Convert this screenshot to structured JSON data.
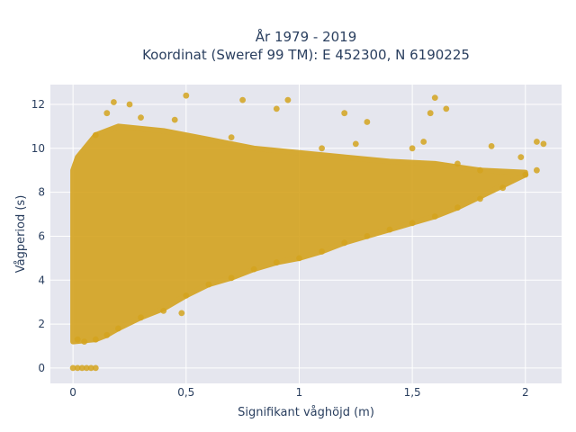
{
  "chart_data": {
    "type": "scatter",
    "title_line1": "År 1979 - 2019",
    "title_line2": "Koordinat (Sweref 99 TM): E 452300, N 6190225",
    "xlabel": "Signifikant våghöjd (m)",
    "ylabel": "Vågperiod (s)",
    "xlim": [
      -0.1,
      2.16
    ],
    "ylim": [
      -0.7,
      12.9
    ],
    "xticks": [
      0,
      0.5,
      1,
      1.5,
      2
    ],
    "xtick_labels": [
      "0",
      "0,5",
      "1",
      "1,5",
      "2"
    ],
    "yticks": [
      0,
      2,
      4,
      6,
      8,
      10,
      12
    ],
    "ytick_labels": [
      "0",
      "2",
      "4",
      "6",
      "8",
      "10",
      "12"
    ],
    "grid": true,
    "legend": "none",
    "series": [
      {
        "color": "#d4a31f",
        "points": [
          [
            0.0,
            0.0
          ],
          [
            0.02,
            0.0
          ],
          [
            0.04,
            0.0
          ],
          [
            0.06,
            0.0
          ],
          [
            0.08,
            0.0
          ],
          [
            0.1,
            0.0
          ],
          [
            0.02,
            1.3
          ],
          [
            0.05,
            1.2
          ],
          [
            0.1,
            1.3
          ],
          [
            0.15,
            1.5
          ],
          [
            0.2,
            1.8
          ],
          [
            0.3,
            2.3
          ],
          [
            0.4,
            2.6
          ],
          [
            0.48,
            2.5
          ],
          [
            0.5,
            3.3
          ],
          [
            0.6,
            3.8
          ],
          [
            0.7,
            4.1
          ],
          [
            0.8,
            4.5
          ],
          [
            0.9,
            4.8
          ],
          [
            1.0,
            5.0
          ],
          [
            1.1,
            5.3
          ],
          [
            1.2,
            5.7
          ],
          [
            1.3,
            6.0
          ],
          [
            1.4,
            6.3
          ],
          [
            1.5,
            6.6
          ],
          [
            1.6,
            6.9
          ],
          [
            1.7,
            7.3
          ],
          [
            1.8,
            7.7
          ],
          [
            1.9,
            8.2
          ],
          [
            2.0,
            8.8
          ],
          [
            2.05,
            9.0
          ],
          [
            2.08,
            10.2
          ],
          [
            2.05,
            10.3
          ],
          [
            0.1,
            10.6
          ],
          [
            0.15,
            11.6
          ],
          [
            0.18,
            12.1
          ],
          [
            0.25,
            12.0
          ],
          [
            0.5,
            12.4
          ],
          [
            0.3,
            11.4
          ],
          [
            0.45,
            11.3
          ],
          [
            0.75,
            12.2
          ],
          [
            0.9,
            11.8
          ],
          [
            0.95,
            12.2
          ],
          [
            1.2,
            11.6
          ],
          [
            1.3,
            11.2
          ],
          [
            1.6,
            12.3
          ],
          [
            1.58,
            11.6
          ],
          [
            1.65,
            11.8
          ],
          [
            1.55,
            10.3
          ],
          [
            1.5,
            10.0
          ],
          [
            1.25,
            10.2
          ],
          [
            1.1,
            10.0
          ],
          [
            0.7,
            10.5
          ],
          [
            1.85,
            10.1
          ],
          [
            1.98,
            9.6
          ],
          [
            1.7,
            9.3
          ],
          [
            1.8,
            9.0
          ]
        ]
      }
    ]
  }
}
